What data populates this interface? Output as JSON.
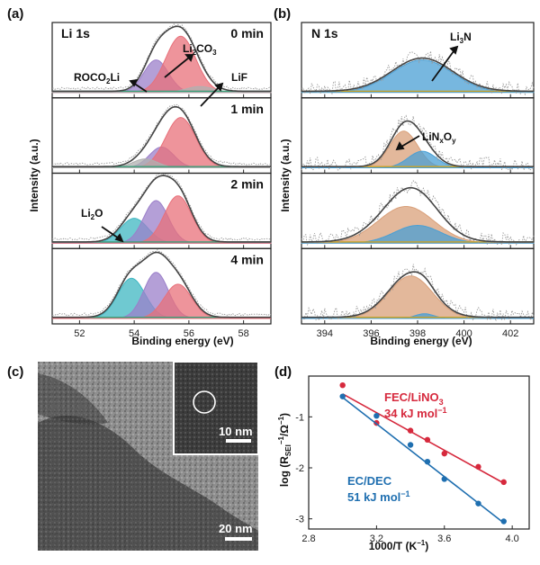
{
  "panels": {
    "a": {
      "label": "(a)",
      "title": "Li 1s",
      "xlabel": "Binding energy (eV)",
      "ylabel": "Intensity (a.u.)",
      "xticks": [
        "52",
        "54",
        "56",
        "58"
      ],
      "times": [
        "0 min",
        "1 min",
        "2 min",
        "4 min"
      ],
      "annotations": {
        "roco2li": "ROCO",
        "roco2li_sub": "2",
        "roco2li_end": "Li",
        "li2co3": "Li",
        "li2co3_sub1": "2",
        "li2co3_mid": "CO",
        "li2co3_sub2": "3",
        "lif": "LiF",
        "li2o": "Li",
        "li2o_sub": "2",
        "li2o_end": "O"
      }
    },
    "b": {
      "label": "(b)",
      "title": "N 1s",
      "xlabel": "Binding energy (eV)",
      "ylabel": "Intensity (a.u.)",
      "xticks": [
        "394",
        "396",
        "398",
        "400",
        "402"
      ],
      "annotations": {
        "li3n": "Li",
        "li3n_sub": "3",
        "li3n_end": "N",
        "linxoy": "LiN",
        "linxoy_sub1": "x",
        "linxoy_mid": "O",
        "linxoy_sub2": "y"
      }
    },
    "c": {
      "label": "(c)",
      "scale_main": "20 nm",
      "scale_inset": "10 nm"
    },
    "d": {
      "label": "(d)",
      "xlabel": "1000/T (K",
      "xlabel_sup": "−1",
      "xlabel_end": ")",
      "ylabel": "log (R",
      "ylabel_sub": "SEI",
      "ylabel_sup1": "−1",
      "ylabel_mid": "/Ω",
      "ylabel_sup2": "−1",
      "ylabel_end": ")",
      "xticks": [
        "2.8",
        "3.2",
        "3.6",
        "4.0"
      ],
      "yticks": [
        "-1",
        "-2",
        "-3"
      ],
      "fec_name": "FEC/LiNO",
      "fec_sub": "3",
      "fec_energy": "34 kJ mol",
      "fec_sup": "−1",
      "ec_name": "EC/DEC",
      "ec_energy": "51 kJ mol",
      "ec_sup": "−1"
    }
  },
  "colors": {
    "red": "#d6293d",
    "blue": "#1f6fb0",
    "li2co3": "#e8707a",
    "roco2li": "#9b7fc9",
    "li2o": "#3fb7c2",
    "lif": "#b0b0b0",
    "li3n": "#4a9fd4",
    "linxoy": "#d9a07a"
  },
  "chart_data": [
    {
      "type": "line",
      "panel": "a",
      "title": "Li 1s",
      "xlabel": "Binding energy (eV)",
      "ylabel": "Intensity (a.u.)",
      "xlim": [
        51,
        59
      ],
      "x_reversed": false,
      "components": [
        "Li2O",
        "ROCO2Li",
        "Li2CO3",
        "LiF"
      ],
      "spectra": [
        {
          "name": "0 min",
          "peaks": [
            {
              "component": "ROCO2Li",
              "center": 54.8,
              "height": 0.55,
              "width": 0.45
            },
            {
              "component": "Li2CO3",
              "center": 55.7,
              "height": 0.95,
              "width": 0.55
            },
            {
              "component": "LiF",
              "center": 56.4,
              "height": 0.1,
              "width": 0.5
            }
          ]
        },
        {
          "name": "1 min",
          "peaks": [
            {
              "component": "ROCO2Li",
              "center": 55.0,
              "height": 0.35,
              "width": 0.45
            },
            {
              "component": "Li2CO3",
              "center": 55.7,
              "height": 0.85,
              "width": 0.55
            },
            {
              "component": "LiF",
              "center": 54.4,
              "height": 0.15,
              "width": 0.45
            }
          ]
        },
        {
          "name": "2 min",
          "peaks": [
            {
              "component": "Li2O",
              "center": 54.0,
              "height": 0.42,
              "width": 0.5
            },
            {
              "component": "ROCO2Li",
              "center": 54.8,
              "height": 0.72,
              "width": 0.45
            },
            {
              "component": "Li2CO3",
              "center": 55.6,
              "height": 0.8,
              "width": 0.5
            }
          ]
        },
        {
          "name": "4 min",
          "peaks": [
            {
              "component": "Li2O",
              "center": 53.9,
              "height": 0.68,
              "width": 0.5
            },
            {
              "component": "ROCO2Li",
              "center": 54.8,
              "height": 0.78,
              "width": 0.45
            },
            {
              "component": "Li2CO3",
              "center": 55.6,
              "height": 0.58,
              "width": 0.5
            }
          ]
        }
      ]
    },
    {
      "type": "line",
      "panel": "b",
      "title": "N 1s",
      "xlabel": "Binding energy (eV)",
      "ylabel": "Intensity (a.u.)",
      "xlim": [
        393,
        403
      ],
      "spectra": [
        {
          "name": "0 min",
          "peaks": [
            {
              "component": "Li3N",
              "center": 398.2,
              "height": 0.55,
              "width": 1.3
            }
          ]
        },
        {
          "name": "1 min",
          "peaks": [
            {
              "component": "LiNxOy",
              "center": 397.4,
              "height": 0.62,
              "width": 0.6
            },
            {
              "component": "Li3N",
              "center": 398.2,
              "height": 0.28,
              "width": 0.6
            }
          ]
        },
        {
          "name": "2 min",
          "peaks": [
            {
              "component": "LiNxOy",
              "center": 397.5,
              "height": 0.62,
              "width": 1.2
            },
            {
              "component": "Li3N",
              "center": 398.0,
              "height": 0.3,
              "width": 1.0
            }
          ]
        },
        {
          "name": "4 min",
          "peaks": [
            {
              "component": "LiNxOy",
              "center": 397.7,
              "height": 0.72,
              "width": 0.95
            },
            {
              "component": "Li3N",
              "center": 398.3,
              "height": 0.08,
              "width": 0.4
            }
          ]
        }
      ]
    },
    {
      "type": "scatter",
      "panel": "d",
      "xlabel": "1000/T (K−1)",
      "ylabel": "log (RSEI−1/Ω−1)",
      "xlim": [
        2.8,
        4.1
      ],
      "ylim": [
        -3.2,
        -0.2
      ],
      "series": [
        {
          "name": "FEC/LiNO3",
          "x": [
            3.0,
            3.2,
            3.4,
            3.5,
            3.6,
            3.8,
            3.95
          ],
          "y": [
            -0.38,
            -1.12,
            -1.27,
            -1.45,
            -1.72,
            -1.98,
            -2.28
          ],
          "fit": [
            [
              3.0,
              -0.55
            ],
            [
              3.95,
              -2.3
            ]
          ]
        },
        {
          "name": "EC/DEC",
          "x": [
            3.0,
            3.2,
            3.4,
            3.5,
            3.6,
            3.8,
            3.95
          ],
          "y": [
            -0.6,
            -0.98,
            -1.55,
            -1.88,
            -2.22,
            -2.7,
            -3.05
          ],
          "fit": [
            [
              3.0,
              -0.62
            ],
            [
              3.95,
              -3.08
            ]
          ]
        }
      ]
    }
  ]
}
